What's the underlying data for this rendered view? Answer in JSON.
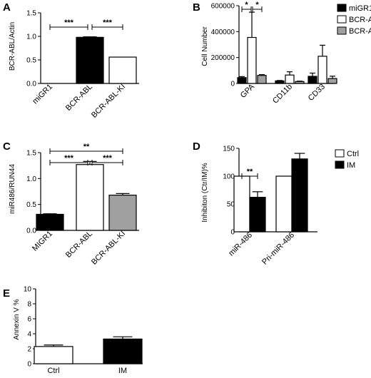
{
  "chart_data": [
    {
      "panel": "A",
      "type": "bar",
      "ylabel": "BCR-ABL/Actin",
      "ylim": [
        0,
        1.5
      ],
      "yticks": [
        "0.0",
        "0.5",
        "1.0",
        "1.5"
      ],
      "categories": [
        "miGR1",
        "BCR-ABL",
        "BCR-ABL-KI"
      ],
      "values": [
        0.0,
        0.98,
        0.56
      ],
      "errors": [
        0,
        0.01,
        0.005
      ],
      "bar_colors": [
        "#000000",
        "#000000",
        "#ffffff"
      ],
      "significance": [
        {
          "from": 0,
          "to": 1,
          "label": "***"
        },
        {
          "from": 1,
          "to": 2,
          "label": "***"
        }
      ]
    },
    {
      "panel": "B",
      "type": "bar",
      "ylabel": "Cell Number",
      "ylim": [
        0,
        600000
      ],
      "yticks": [
        "0",
        "200000",
        "400000",
        "600000"
      ],
      "categories": [
        "GPA",
        "CD11b",
        "CD33"
      ],
      "series": [
        {
          "name": "miGR1",
          "color": "#000000",
          "values": [
            45000,
            20000,
            55000
          ],
          "errors": [
            8000,
            3000,
            25000
          ]
        },
        {
          "name": "BCR-ABL",
          "color": "#ffffff",
          "values": [
            355000,
            65000,
            210000
          ],
          "errors": [
            195000,
            25000,
            85000
          ]
        },
        {
          "name": "BCR-ABL-KI",
          "color": "#a0a0a0",
          "values": [
            62000,
            15000,
            38000
          ],
          "errors": [
            6000,
            3000,
            18000
          ]
        }
      ],
      "legend_position": "top-right",
      "significance": [
        {
          "category": 0,
          "from": 0,
          "to": 1,
          "label": "*"
        },
        {
          "category": 0,
          "from": 1,
          "to": 2,
          "label": "*"
        }
      ]
    },
    {
      "panel": "C",
      "type": "bar",
      "ylabel": "miR486/RUN44",
      "ylim": [
        0,
        1.5
      ],
      "yticks": [
        "0.0",
        "0.5",
        "1.0",
        "1.5"
      ],
      "categories": [
        "MIGR1",
        "BCR-ABL",
        "BCR-ABL-KI"
      ],
      "values": [
        0.31,
        1.27,
        0.68
      ],
      "errors": [
        0.01,
        0.06,
        0.03
      ],
      "bar_colors": [
        "#000000",
        "#ffffff",
        "#a0a0a0"
      ],
      "significance": [
        {
          "from": 0,
          "to": 2,
          "label": "**"
        },
        {
          "from": 0,
          "to": 1,
          "label": "***"
        },
        {
          "from": 1,
          "to": 2,
          "label": "***"
        }
      ]
    },
    {
      "panel": "D",
      "type": "bar",
      "ylabel": "Inhibiton (Ctr/IM)%",
      "ylim": [
        0,
        150
      ],
      "yticks": [
        "0",
        "50",
        "100",
        "150"
      ],
      "categories": [
        "miR-486",
        "Pri-miR-486"
      ],
      "series": [
        {
          "name": "Ctrl",
          "color": "#ffffff",
          "values": [
            100,
            100
          ],
          "errors": [
            0,
            0
          ]
        },
        {
          "name": "IM",
          "color": "#000000",
          "values": [
            62,
            131
          ],
          "errors": [
            10,
            10
          ]
        }
      ],
      "legend_position": "top-right",
      "significance": [
        {
          "category": 0,
          "from": 0,
          "to": 1,
          "label": "**"
        }
      ]
    },
    {
      "panel": "E",
      "type": "bar",
      "ylabel": "Annexin V %",
      "ylim": [
        0,
        10
      ],
      "yticks": [
        "0",
        "2",
        "4",
        "6",
        "8",
        "10"
      ],
      "categories": [
        "Ctrl",
        "IM"
      ],
      "values": [
        2.3,
        3.3
      ],
      "errors": [
        0.2,
        0.3
      ],
      "bar_colors": [
        "#ffffff",
        "#000000"
      ],
      "significance": []
    }
  ]
}
